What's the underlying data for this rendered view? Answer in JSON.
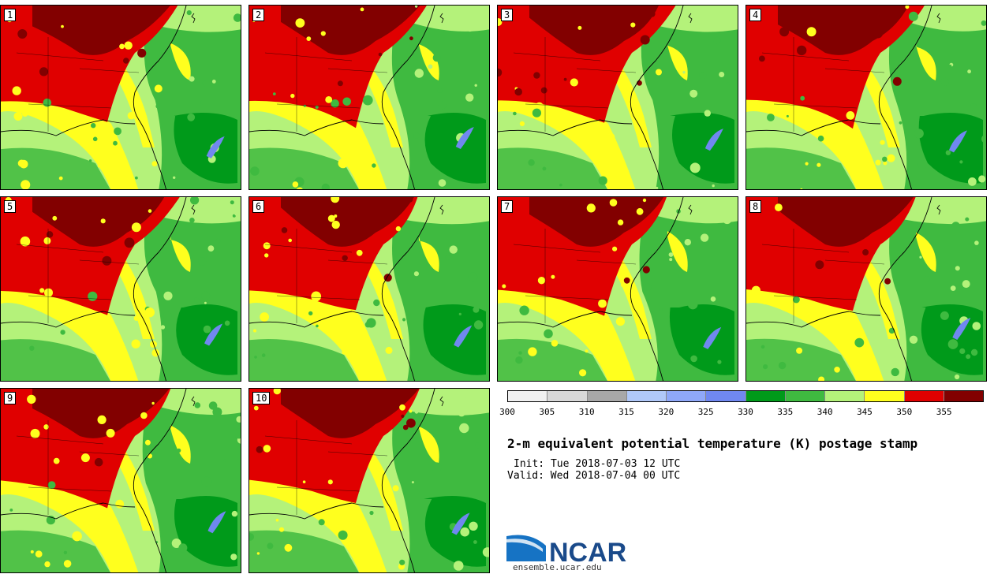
{
  "title": "2-m equivalent potential temperature (K) postage stamp",
  "init_label": "Init: Tue 2018-07-03 12 UTC",
  "valid_label": "Valid: Wed 2018-07-04 00 UTC",
  "logo": {
    "name": "NCAR",
    "url": "ensemble.ucar.edu"
  },
  "panels": [
    {
      "label": "1"
    },
    {
      "label": "2"
    },
    {
      "label": "3"
    },
    {
      "label": "4"
    },
    {
      "label": "5"
    },
    {
      "label": "6"
    },
    {
      "label": "7"
    },
    {
      "label": "8"
    },
    {
      "label": "9"
    },
    {
      "label": "10"
    }
  ],
  "colorbar": {
    "ticks": [
      "300",
      "305",
      "310",
      "315",
      "320",
      "325",
      "330",
      "335",
      "340",
      "345",
      "350",
      "355"
    ],
    "colors": [
      "#f0f0f0",
      "#d8d8d8",
      "#a8a8a8",
      "#b0c8f8",
      "#8fa8f8",
      "#7088f0",
      "#009a1a",
      "#3fba40",
      "#b4f27a",
      "#ffff1e",
      "#e00000",
      "#820000"
    ]
  },
  "map_colors": {
    "darkred": "#820000",
    "red": "#e00000",
    "yellow": "#ffff1e",
    "lightgreen": "#b4f27a",
    "midgreen": "#3fba40",
    "darkgreen": "#009a1a",
    "blue": "#7088f0"
  }
}
